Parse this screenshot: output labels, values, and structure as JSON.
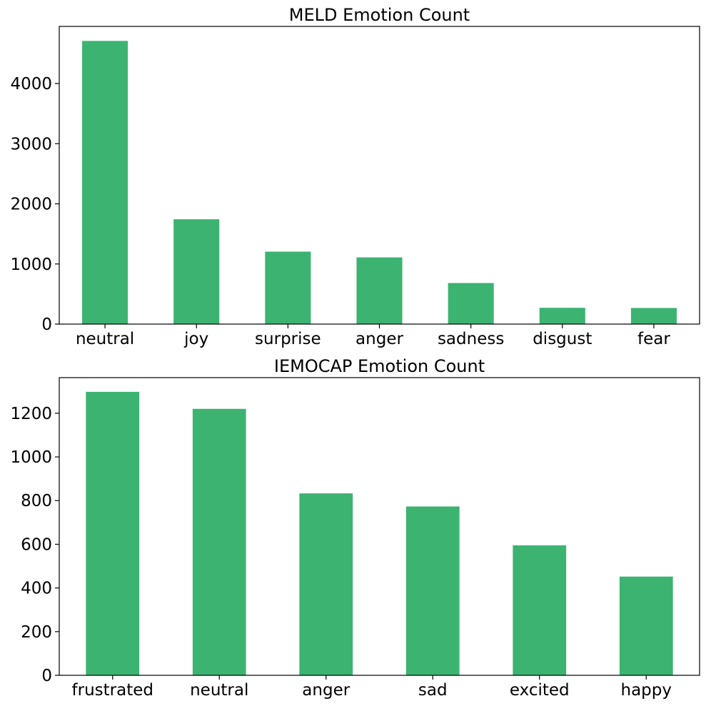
{
  "chart_data": [
    {
      "type": "bar",
      "title": "MELD Emotion Count",
      "xlabel": "",
      "ylabel": "",
      "categories": [
        "neutral",
        "joy",
        "surprise",
        "anger",
        "sadness",
        "disgust",
        "fear"
      ],
      "values": [
        4709,
        1743,
        1205,
        1109,
        683,
        271,
        268
      ],
      "ylim": [
        0,
        4950
      ],
      "yticks": [
        0,
        1000,
        2000,
        3000,
        4000
      ],
      "color": "#3cb371",
      "grid": false,
      "legend": false
    },
    {
      "type": "bar",
      "title": "IEMOCAP Emotion Count",
      "xlabel": "",
      "ylabel": "",
      "categories": [
        "frustrated",
        "neutral",
        "anger",
        "sad",
        "excited",
        "happy"
      ],
      "values": [
        1298,
        1220,
        833,
        773,
        595,
        452
      ],
      "ylim": [
        0,
        1363
      ],
      "yticks": [
        0,
        200,
        400,
        600,
        800,
        1000,
        1200
      ],
      "color": "#3cb371",
      "grid": false,
      "legend": false
    }
  ]
}
